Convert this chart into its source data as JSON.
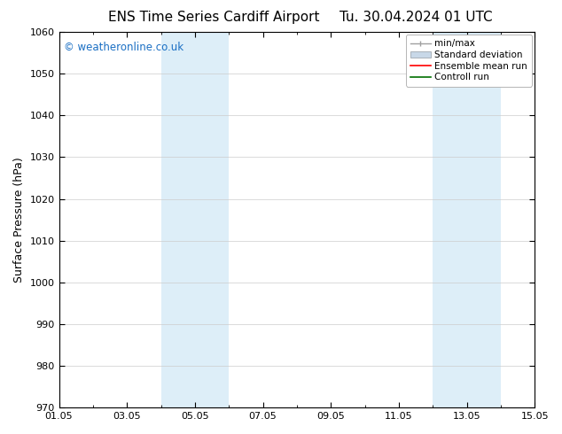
{
  "title_left": "ENS Time Series Cardiff Airport",
  "title_right": "Tu. 30.04.2024 01 UTC",
  "ylabel": "Surface Pressure (hPa)",
  "ylim": [
    970,
    1060
  ],
  "yticks": [
    970,
    980,
    990,
    1000,
    1010,
    1020,
    1030,
    1040,
    1050,
    1060
  ],
  "xlim": [
    0,
    14
  ],
  "xtick_labels": [
    "01.05",
    "03.05",
    "05.05",
    "07.05",
    "09.05",
    "11.05",
    "13.05",
    "15.05"
  ],
  "xtick_positions": [
    0,
    2,
    4,
    6,
    8,
    10,
    12,
    14
  ],
  "shaded_regions": [
    {
      "start": 3.0,
      "end": 5.0
    },
    {
      "start": 11.0,
      "end": 13.0
    }
  ],
  "shade_color": "#ddeef8",
  "watermark_text": "© weatheronline.co.uk",
  "watermark_color": "#1a6fc4",
  "bg_color": "#ffffff",
  "axis_linecolor": "#000000",
  "grid_color": "#cccccc",
  "title_fontsize": 11,
  "tick_fontsize": 8,
  "ylabel_fontsize": 9,
  "minmax_color": "#a0a0a0",
  "std_facecolor": "#c8d8e8",
  "std_edgecolor": "#a0a8b0",
  "ens_color": "#ff0000",
  "ctrl_color": "#007000"
}
